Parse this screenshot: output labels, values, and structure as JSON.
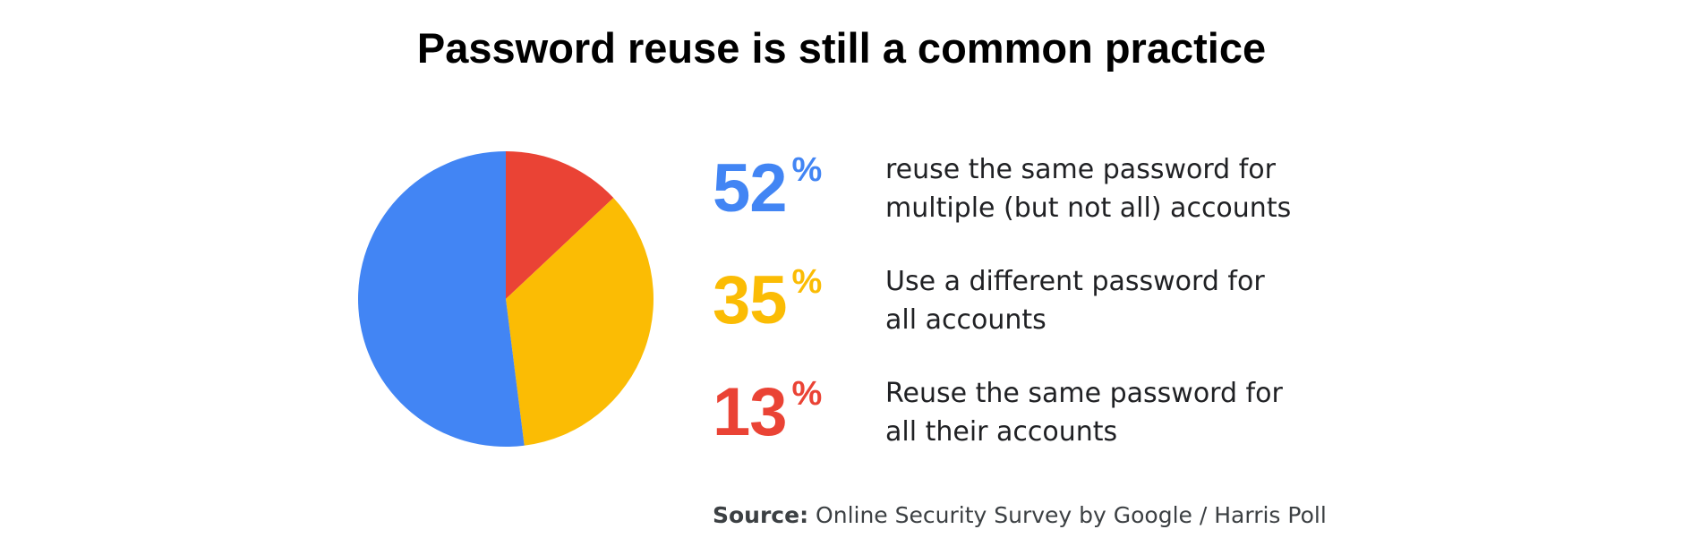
{
  "chart_data": {
    "type": "pie",
    "title": "Password reuse is still a common practice",
    "unit": "%",
    "categories": [
      "reuse the same password for\nmultiple (but not all) accounts",
      "Use a different password for\nall accounts",
      "Reuse the same password for\nall their accounts"
    ],
    "values": [
      52,
      35,
      13
    ],
    "colors": [
      "#4285f4",
      "#fbbc04",
      "#ea4335"
    ],
    "source_label": "Source:",
    "source": "Online Security Survey by Google / Harris Poll"
  }
}
